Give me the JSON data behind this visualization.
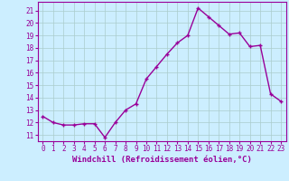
{
  "x": [
    0,
    1,
    2,
    3,
    4,
    5,
    6,
    7,
    8,
    9,
    10,
    11,
    12,
    13,
    14,
    15,
    16,
    17,
    18,
    19,
    20,
    21,
    22,
    23
  ],
  "y": [
    12.5,
    12.0,
    11.8,
    11.8,
    11.9,
    11.9,
    10.8,
    12.0,
    13.0,
    13.5,
    15.5,
    16.5,
    17.5,
    18.4,
    19.0,
    21.2,
    20.5,
    19.8,
    19.1,
    19.2,
    18.1,
    18.2,
    14.3,
    13.7
  ],
  "line_color": "#990099",
  "marker": "+",
  "marker_size": 3.0,
  "bg_color": "#cceeff",
  "grid_color": "#aacccc",
  "xlabel": "Windchill (Refroidissement éolien,°C)",
  "ylim": [
    10.5,
    21.7
  ],
  "xlim": [
    -0.5,
    23.5
  ],
  "yticks": [
    11,
    12,
    13,
    14,
    15,
    16,
    17,
    18,
    19,
    20,
    21
  ],
  "xticks": [
    0,
    1,
    2,
    3,
    4,
    5,
    6,
    7,
    8,
    9,
    10,
    11,
    12,
    13,
    14,
    15,
    16,
    17,
    18,
    19,
    20,
    21,
    22,
    23
  ],
  "tick_fontsize": 5.5,
  "xlabel_fontsize": 6.5,
  "line_width": 1.0,
  "marker_lw": 1.0
}
